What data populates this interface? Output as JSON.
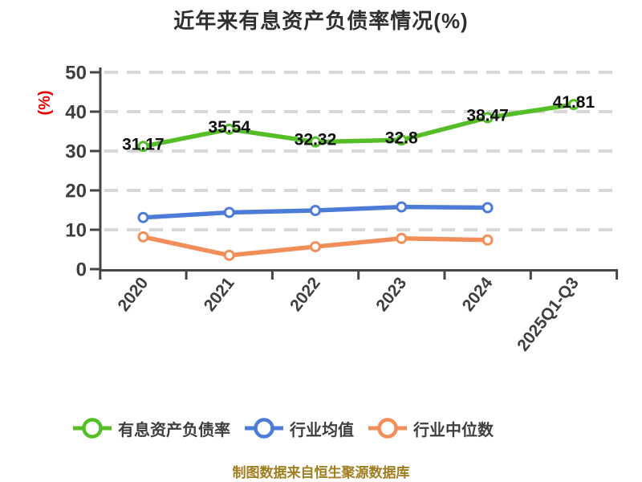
{
  "title": "近年来有息资产负债率情况(%)",
  "caption": "制图数据来自恒生聚源数据库",
  "colors": {
    "title_text": "#2f2f2f",
    "axis": "#454545",
    "tick_label": "#3e3e3e",
    "grid": "#d7d7d7",
    "ylabel_red": "#e60000",
    "caption_gold": "#a07d1e",
    "data_label": "#101010",
    "marker_fill": "#ffffff"
  },
  "chart_data": {
    "type": "line",
    "title": "近年来有息资产负债率情况(%)",
    "xlabel": "",
    "ylabel": "(%)",
    "categories": [
      "2020",
      "2021",
      "2022",
      "2023",
      "2024",
      "2025Q1-Q3"
    ],
    "yticks": [
      0,
      10,
      20,
      30,
      40,
      50
    ],
    "ylim": [
      0,
      50
    ],
    "grid": "horizontal-dashed",
    "legend_position": "bottom",
    "series": [
      {
        "name": "有息资产负债率",
        "color": "#55be27",
        "values": [
          31.17,
          35.54,
          32.32,
          32.8,
          38.47,
          41.81
        ],
        "point_labels": [
          "31.17",
          "35.54",
          "32.32",
          "32.8",
          "38.47",
          "41.81"
        ]
      },
      {
        "name": "行业均值",
        "color": "#4c7cd8",
        "values": [
          13.1,
          14.4,
          14.9,
          15.8,
          15.6,
          null
        ],
        "point_labels": null
      },
      {
        "name": "行业中位数",
        "color": "#f28e5a",
        "values": [
          8.2,
          3.5,
          5.7,
          7.8,
          7.4,
          null
        ],
        "point_labels": null
      }
    ]
  }
}
